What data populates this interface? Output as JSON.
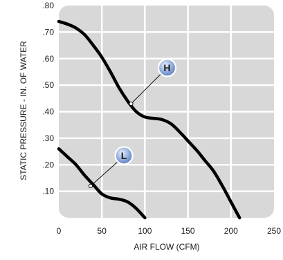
{
  "chart_data": {
    "type": "line",
    "xlabel": "AIR FLOW (CFM)",
    "ylabel": "STATIC PRESSURE - IN. OF WATER",
    "xlim": [
      0,
      250
    ],
    "ylim": [
      0,
      0.8
    ],
    "x_ticks": [
      {
        "value": 0,
        "label": "0"
      },
      {
        "value": 50,
        "label": "50"
      },
      {
        "value": 100,
        "label": "100"
      },
      {
        "value": 150,
        "label": "150"
      },
      {
        "value": 200,
        "label": "200"
      },
      {
        "value": 250,
        "label": "250"
      }
    ],
    "y_ticks": [
      {
        "value": 0.1,
        "label": ".10"
      },
      {
        "value": 0.2,
        "label": ".20"
      },
      {
        "value": 0.3,
        "label": ".30"
      },
      {
        "value": 0.4,
        "label": ".40"
      },
      {
        "value": 0.5,
        "label": ".50"
      },
      {
        "value": 0.6,
        "label": ".60"
      },
      {
        "value": 0.7,
        "label": ".70"
      },
      {
        "value": 0.8,
        "label": ".80"
      }
    ],
    "grid": true,
    "series": [
      {
        "name": "H",
        "points": [
          [
            0,
            0.74
          ],
          [
            10,
            0.73
          ],
          [
            20,
            0.715
          ],
          [
            30,
            0.69
          ],
          [
            40,
            0.65
          ],
          [
            50,
            0.605
          ],
          [
            60,
            0.55
          ],
          [
            70,
            0.49
          ],
          [
            80,
            0.44
          ],
          [
            90,
            0.4
          ],
          [
            100,
            0.38
          ],
          [
            110,
            0.375
          ],
          [
            120,
            0.37
          ],
          [
            130,
            0.355
          ],
          [
            140,
            0.325
          ],
          [
            150,
            0.29
          ],
          [
            160,
            0.255
          ],
          [
            170,
            0.215
          ],
          [
            180,
            0.175
          ],
          [
            190,
            0.12
          ],
          [
            200,
            0.06
          ],
          [
            210,
            0
          ]
        ]
      },
      {
        "name": "L",
        "points": [
          [
            0,
            0.26
          ],
          [
            10,
            0.23
          ],
          [
            20,
            0.2
          ],
          [
            30,
            0.16
          ],
          [
            40,
            0.125
          ],
          [
            50,
            0.09
          ],
          [
            60,
            0.075
          ],
          [
            70,
            0.07
          ],
          [
            80,
            0.06
          ],
          [
            90,
            0.035
          ],
          [
            100,
            0
          ]
        ]
      }
    ],
    "annotations": [
      {
        "label": "H",
        "series": "H",
        "x": 84,
        "y": 0.43
      },
      {
        "label": "L",
        "series": "L",
        "x": 37,
        "y": 0.12
      }
    ],
    "colors": {
      "plot_bg": "#d8d8d8",
      "grid": "#ffffff",
      "curve": "#000000",
      "badge_fill": "#8aa9dc",
      "badge_text": "#1a1a1a"
    }
  }
}
